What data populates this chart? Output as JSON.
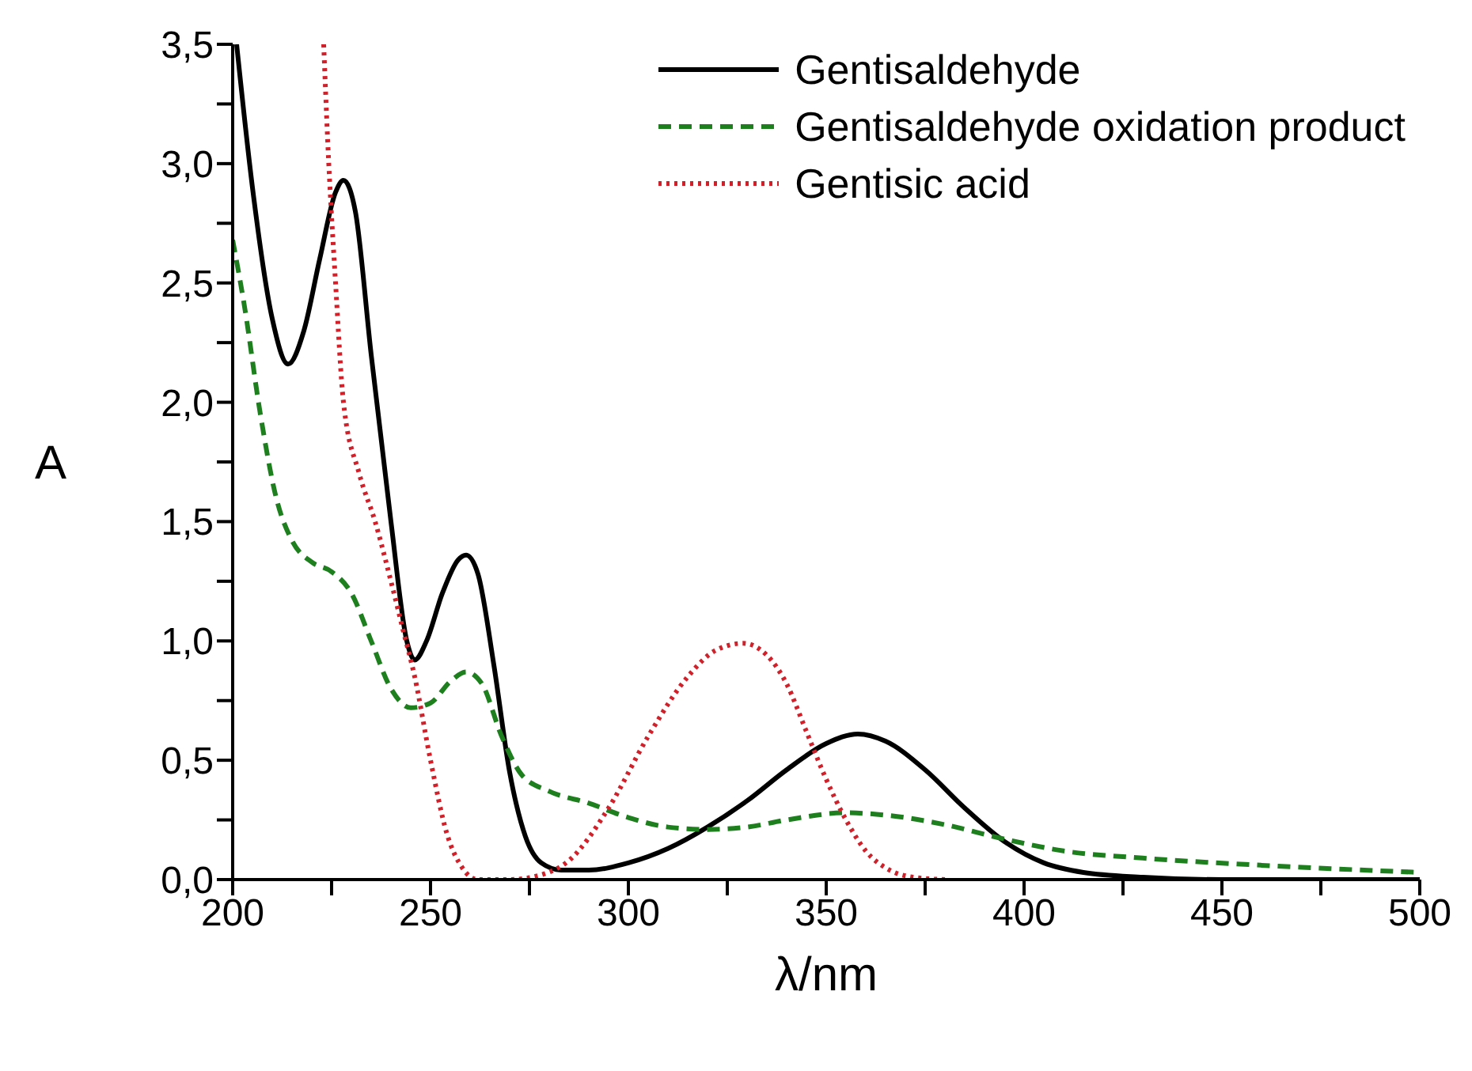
{
  "chart_data": {
    "type": "line",
    "xlabel": "λ/nm",
    "ylabel": "A",
    "xlim": [
      200,
      500
    ],
    "ylim": [
      0,
      3.5
    ],
    "xticks": [
      {
        "value": 200,
        "label": "200"
      },
      {
        "value": 225,
        "label": null
      },
      {
        "value": 250,
        "label": "250"
      },
      {
        "value": 275,
        "label": null
      },
      {
        "value": 300,
        "label": "300"
      },
      {
        "value": 325,
        "label": null
      },
      {
        "value": 350,
        "label": "350"
      },
      {
        "value": 375,
        "label": null
      },
      {
        "value": 400,
        "label": "400"
      },
      {
        "value": 425,
        "label": null
      },
      {
        "value": 450,
        "label": "450"
      },
      {
        "value": 475,
        "label": null
      },
      {
        "value": 500,
        "label": "500"
      }
    ],
    "yticks": [
      {
        "value": 0,
        "label": "0,0"
      },
      {
        "value": 0.25,
        "label": null
      },
      {
        "value": 0.5,
        "label": "0,5"
      },
      {
        "value": 0.75,
        "label": null
      },
      {
        "value": 1,
        "label": "1,0"
      },
      {
        "value": 1.25,
        "label": null
      },
      {
        "value": 1.5,
        "label": "1,5"
      },
      {
        "value": 1.75,
        "label": null
      },
      {
        "value": 2,
        "label": "2,0"
      },
      {
        "value": 2.25,
        "label": null
      },
      {
        "value": 2.5,
        "label": "2,5"
      },
      {
        "value": 2.75,
        "label": null
      },
      {
        "value": 3,
        "label": "3,0"
      },
      {
        "value": 3.25,
        "label": null
      },
      {
        "value": 3.5,
        "label": "3,5"
      }
    ],
    "grid": false,
    "legend": "top right",
    "marker": "none",
    "series": [
      {
        "name": "Gentisaldehyde",
        "color": "#000000",
        "line_style": "solid",
        "x": [
          201,
          205,
          210,
          214,
          218,
          222,
          226,
          228,
          231,
          235,
          240,
          244,
          246,
          249,
          253,
          257,
          259,
          262,
          266,
          270,
          274,
          278,
          283,
          290,
          300,
          310,
          320,
          330,
          340,
          350,
          358,
          365,
          375,
          385,
          395,
          405,
          415,
          430,
          450,
          500
        ],
        "values": [
          3.5,
          2.9,
          2.35,
          2.16,
          2.3,
          2.6,
          2.88,
          2.93,
          2.8,
          2.2,
          1.5,
          1.0,
          0.92,
          1.0,
          1.2,
          1.34,
          1.36,
          1.28,
          0.9,
          0.45,
          0.18,
          0.07,
          0.04,
          0.04,
          0.07,
          0.13,
          0.22,
          0.33,
          0.46,
          0.57,
          0.61,
          0.58,
          0.46,
          0.3,
          0.16,
          0.07,
          0.03,
          0.01,
          0,
          0
        ]
      },
      {
        "name": "Gentisaldehyde oxidation product",
        "color": "#1e7f1e",
        "line_style": "dashed",
        "x": [
          200,
          203,
          207,
          211,
          215,
          220,
          225,
          230,
          235,
          240,
          245,
          250,
          255,
          259,
          263,
          268,
          273,
          280,
          290,
          300,
          310,
          320,
          330,
          340,
          355,
          365,
          380,
          395,
          410,
          430,
          460,
          500
        ],
        "values": [
          2.68,
          2.4,
          1.95,
          1.6,
          1.42,
          1.33,
          1.29,
          1.2,
          1.0,
          0.8,
          0.72,
          0.74,
          0.83,
          0.87,
          0.82,
          0.6,
          0.44,
          0.37,
          0.32,
          0.26,
          0.22,
          0.21,
          0.22,
          0.25,
          0.28,
          0.27,
          0.23,
          0.17,
          0.12,
          0.09,
          0.06,
          0.03
        ]
      },
      {
        "name": "Gentisic acid",
        "color": "#d0202a",
        "line_style": "dotted",
        "x": [
          223,
          224,
          226,
          228,
          232,
          236,
          240,
          243,
          246,
          250,
          254,
          258,
          262,
          270,
          278,
          285,
          295,
          305,
          315,
          322,
          329,
          335,
          340,
          345,
          350,
          355,
          360,
          366,
          372,
          380
        ],
        "values": [
          3.5,
          3.1,
          2.5,
          2.0,
          1.7,
          1.5,
          1.25,
          1.05,
          0.85,
          0.5,
          0.2,
          0.05,
          0,
          0,
          0.02,
          0.08,
          0.3,
          0.6,
          0.85,
          0.96,
          0.99,
          0.94,
          0.82,
          0.62,
          0.42,
          0.25,
          0.12,
          0.04,
          0.01,
          0
        ]
      }
    ]
  }
}
